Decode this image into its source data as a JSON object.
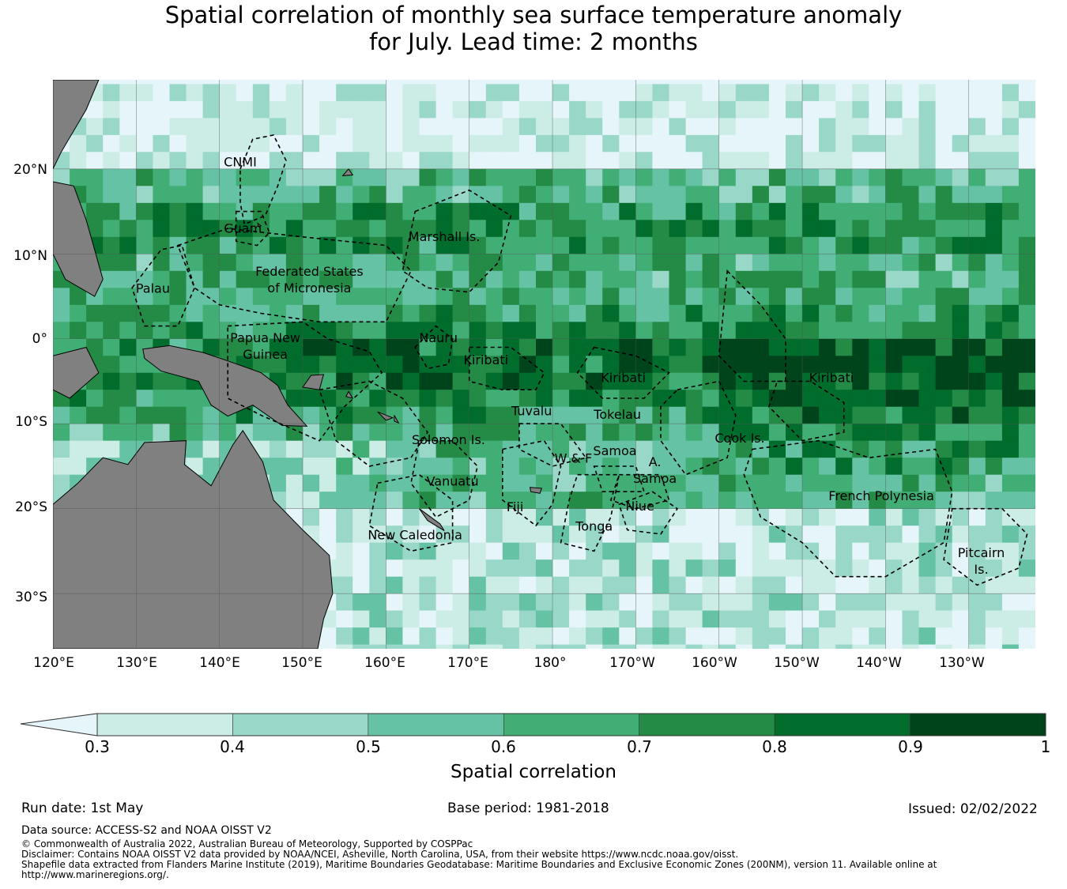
{
  "title_line1": "Spatial correlation of monthly sea surface temperature anomaly",
  "title_line2": "for July. Lead time: 2 months",
  "map": {
    "lat_labels": [
      "20°N",
      "10°N",
      "0°",
      "10°S",
      "20°S",
      "30°S"
    ],
    "lon_labels": [
      "120°E",
      "130°E",
      "140°E",
      "150°E",
      "160°E",
      "170°E",
      "180°",
      "170°W",
      "160°W",
      "150°W",
      "140°W",
      "130°W"
    ],
    "extent": {
      "lon_min": 120,
      "lon_max": 238,
      "lat_min": -36.5,
      "lat_max": 30.5
    },
    "colors": {
      "land": "#808080",
      "ocean_low": "#e6f5f9",
      "boundary": "#000000",
      "grid": "#555555"
    },
    "regions": [
      {
        "name": "CNMI",
        "lines": [
          "CNMI"
        ]
      },
      {
        "name": "Guam",
        "lines": [
          "Guam"
        ]
      },
      {
        "name": "Marshall Is.",
        "lines": [
          "Marshall Is."
        ]
      },
      {
        "name": "Federated States of Micronesia",
        "lines": [
          "Federated States",
          "of Micronesia"
        ]
      },
      {
        "name": "Palau",
        "lines": [
          "Palau"
        ]
      },
      {
        "name": "Papua New Guinea",
        "lines": [
          "Papua New",
          "Guinea"
        ]
      },
      {
        "name": "Nauru",
        "lines": [
          "Nauru"
        ]
      },
      {
        "name": "Kiribati",
        "lines": [
          "Kiribati"
        ]
      },
      {
        "name": "Kiribati",
        "lines": [
          "Kiribati"
        ]
      },
      {
        "name": "Kiribati",
        "lines": [
          "Kiribati"
        ]
      },
      {
        "name": "Tuvalu",
        "lines": [
          "Tuvalu"
        ]
      },
      {
        "name": "Tokelau",
        "lines": [
          "Tokelau"
        ]
      },
      {
        "name": "Solomon Is.",
        "lines": [
          "Solomon Is."
        ]
      },
      {
        "name": "Cook Is.",
        "lines": [
          "Cook Is."
        ]
      },
      {
        "name": "Samoa",
        "lines": [
          "Samoa"
        ]
      },
      {
        "name": "W & F",
        "lines": [
          "W & F"
        ]
      },
      {
        "name": "A. Samoa",
        "lines": [
          "A.",
          "Samoa"
        ]
      },
      {
        "name": "Vanuatu",
        "lines": [
          "Vanuatu"
        ]
      },
      {
        "name": "Fiji",
        "lines": [
          "Fiji"
        ]
      },
      {
        "name": "Niue",
        "lines": [
          "Niue"
        ]
      },
      {
        "name": "Tonga",
        "lines": [
          "Tonga"
        ]
      },
      {
        "name": "French Polynesia",
        "lines": [
          "French Polynesia"
        ]
      },
      {
        "name": "New Caledonia",
        "lines": [
          "New Caledonia"
        ]
      },
      {
        "name": "Pitcairn Is.",
        "lines": [
          "Pitcairn",
          "Is."
        ]
      }
    ]
  },
  "colorbar": {
    "ticks": [
      "0.3",
      "0.4",
      "0.5",
      "0.6",
      "0.7",
      "0.8",
      "0.9",
      "1"
    ],
    "colors": [
      "#ccece6",
      "#99d8c9",
      "#66c2a4",
      "#41ae76",
      "#238b45",
      "#006d2c",
      "#00441b"
    ],
    "under_color": "#e5f5f9",
    "label": "Spatial correlation"
  },
  "run_date": "Run date: 1st May",
  "base_period": "Base period: 1981-2018",
  "issued": "Issued: 02/02/2022",
  "data_source": "Data source: ACCESS-S2 and NOAA OISST V2",
  "copyright": "© Commonwealth of Australia 2022, Australian Bureau of Meteorology, Supported by COSPPac",
  "disclaimer": "Disclaimer: Contains NOAA OISST V2 data provided by NOAA/NCEI, Asheville, North Carolina, USA, from their website https://www.ncdc.noaa.gov/oisst.",
  "shapefile_line1": "Shapefile data extracted from Flanders Marine Institute (2019), Maritime Boundaries Geodatabase: Maritime Boundaries and Exclusive Economic Zones (200NM), version 11. Available online at",
  "shapefile_line2": "http://www.marineregions.org/."
}
